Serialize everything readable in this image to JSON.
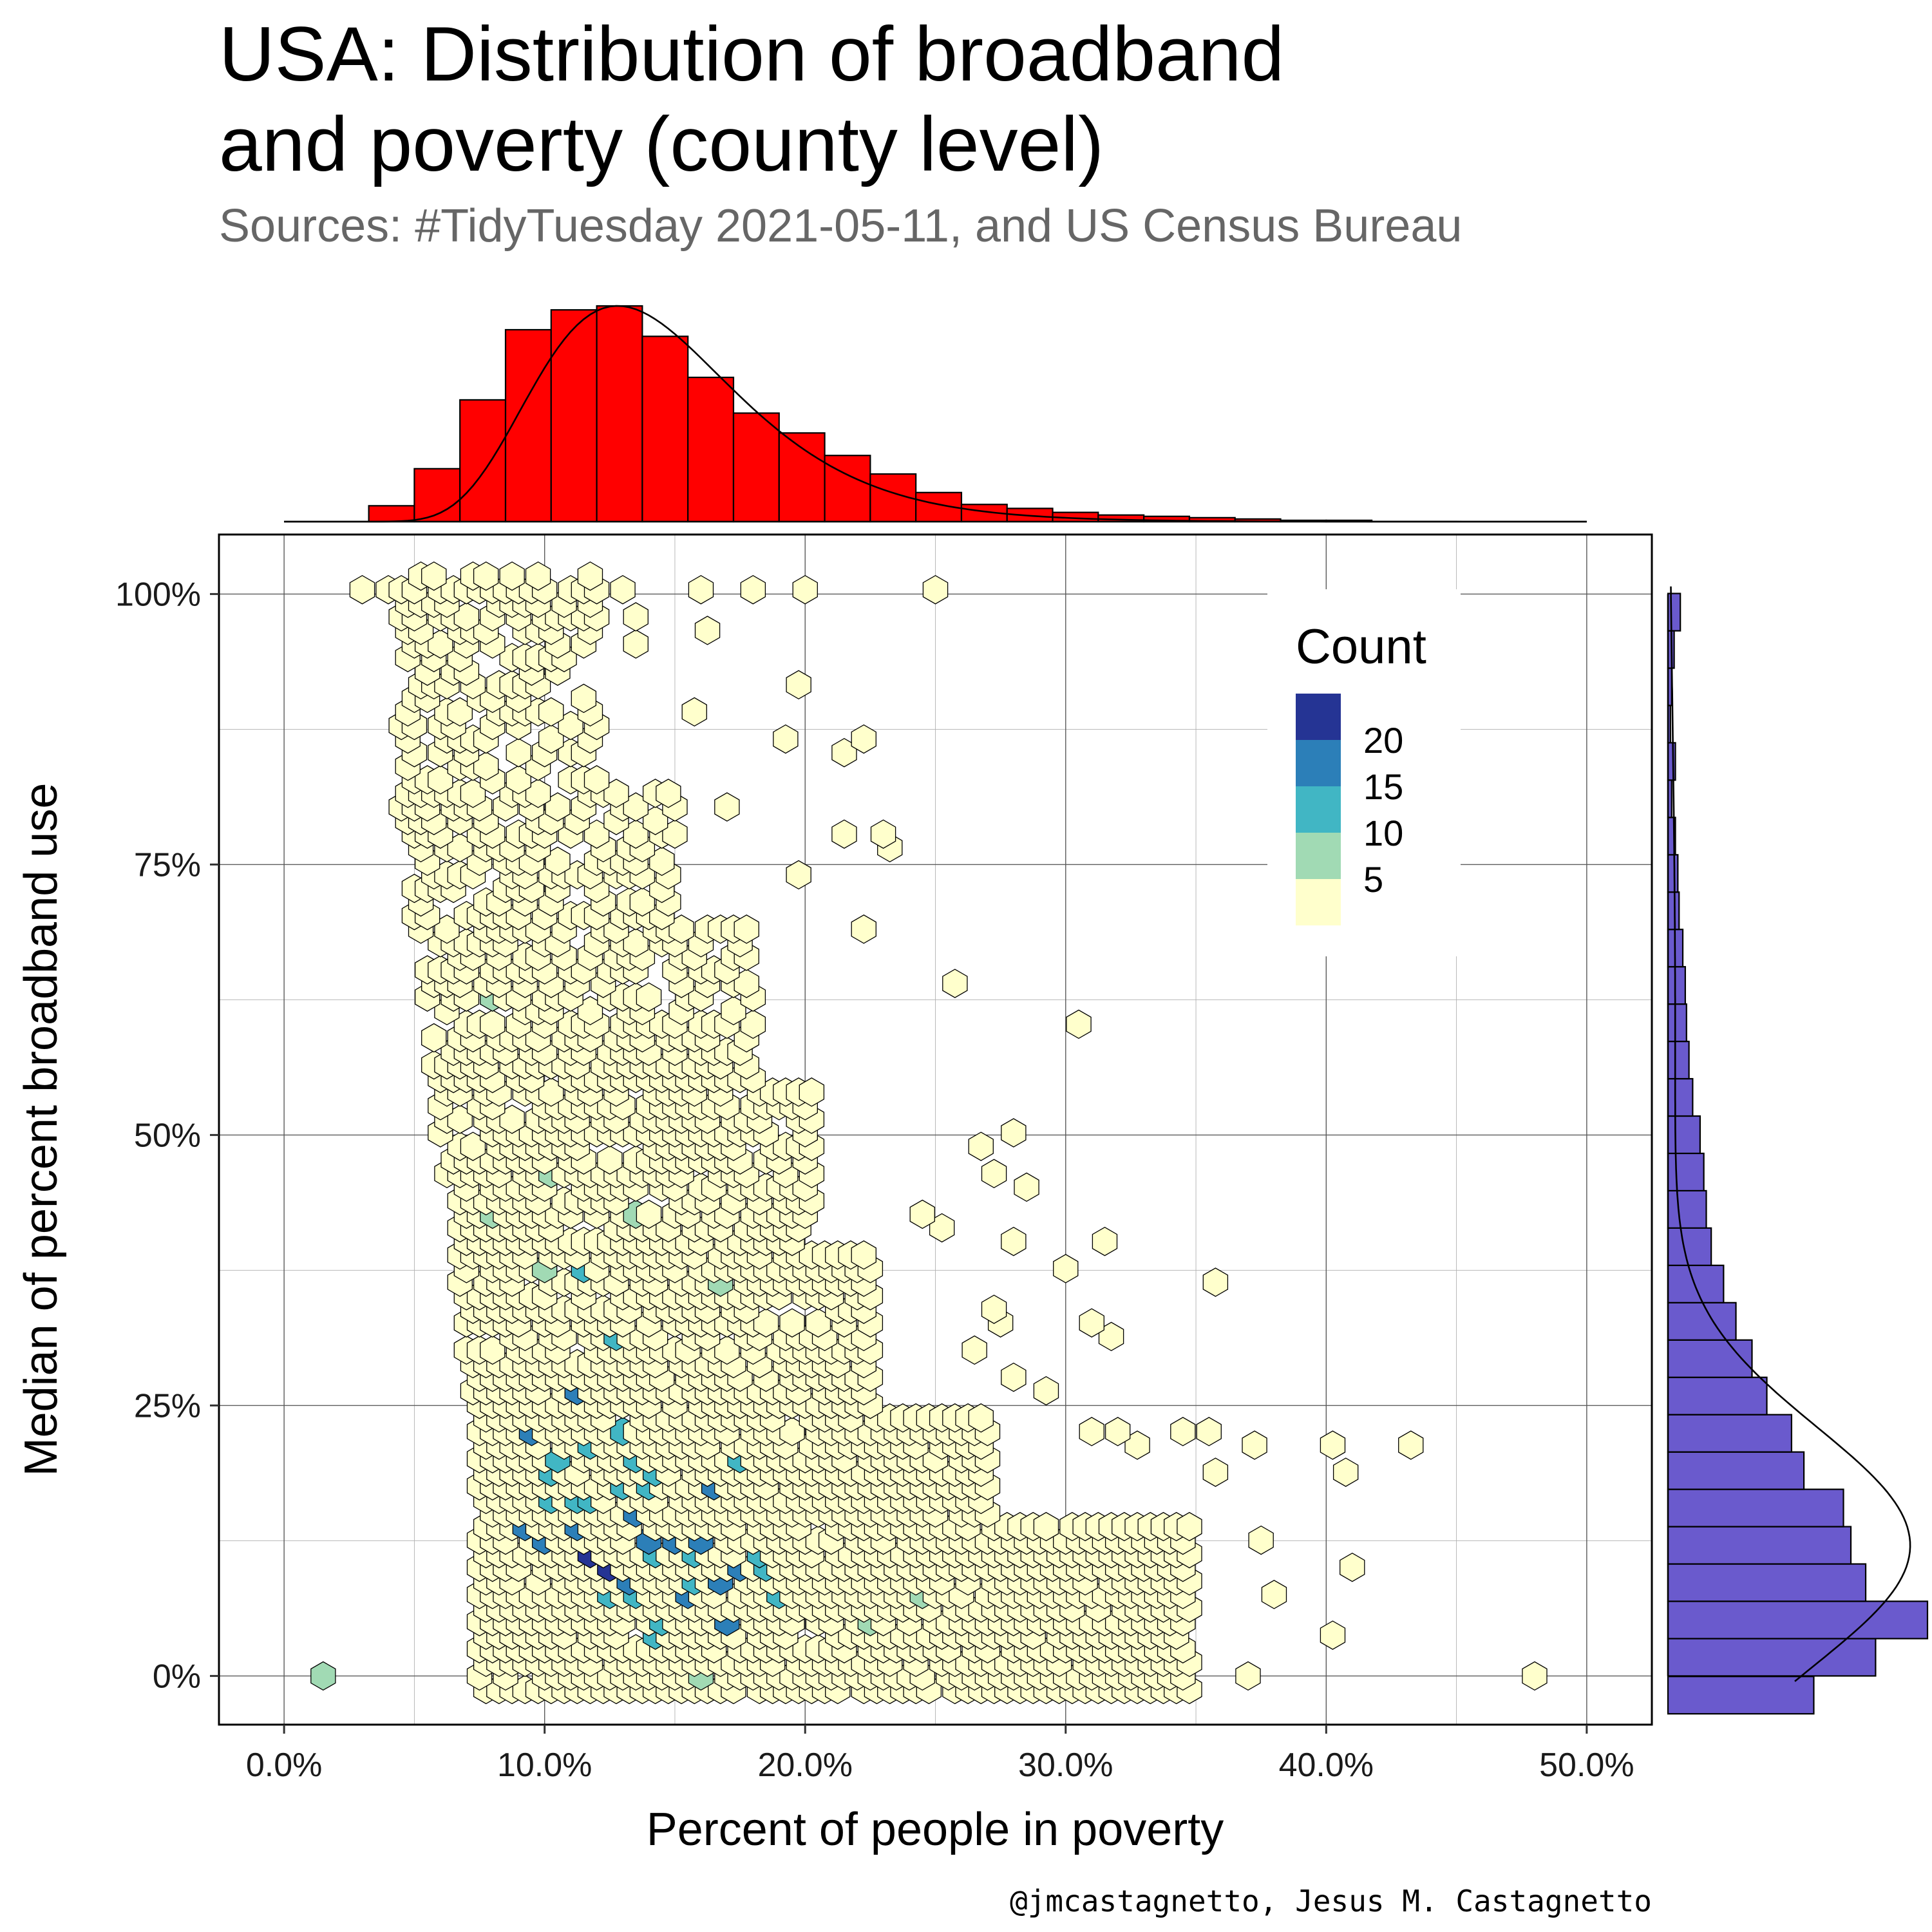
{
  "chart_data": {
    "type": "hexbin",
    "title_lines": [
      "USA: Distribution of broadband",
      "and poverty (county level)"
    ],
    "subtitle": "Sources: #TidyTuesday 2021-05-11, and US Census Bureau",
    "xlabel": "Percent of people in poverty",
    "ylabel": "Median of percent broadband use",
    "caption": "@jmcastagnetto, Jesus M. Castagnetto",
    "xlim": [
      -0.025,
      0.525
    ],
    "ylim": [
      -0.045,
      1.055
    ],
    "x_ticks": [
      {
        "value": 0.0,
        "label": "0.0%"
      },
      {
        "value": 0.1,
        "label": "10.0%"
      },
      {
        "value": 0.2,
        "label": "20.0%"
      },
      {
        "value": 0.3,
        "label": "30.0%"
      },
      {
        "value": 0.4,
        "label": "40.0%"
      },
      {
        "value": 0.5,
        "label": "50.0%"
      }
    ],
    "y_ticks": [
      {
        "value": 0.0,
        "label": "0%"
      },
      {
        "value": 0.25,
        "label": "25%"
      },
      {
        "value": 0.5,
        "label": "50%"
      },
      {
        "value": 0.75,
        "label": "75%"
      },
      {
        "value": 1.0,
        "label": "100%"
      }
    ],
    "grid": true,
    "legend": {
      "title": "Count",
      "position": "top-right",
      "items": [
        {
          "label": "20",
          "color": "#253494"
        },
        {
          "label": "15",
          "color": "#2c7fb8"
        },
        {
          "label": "10",
          "color": "#41b6c4"
        },
        {
          "label": "5",
          "color": "#a1dab4"
        },
        {
          "label": "",
          "color": "#ffffcc"
        }
      ]
    },
    "hex_colors": [
      "#ffffcc",
      "#a1dab4",
      "#41b6c4",
      "#2c7fb8",
      "#253494"
    ],
    "hex_scatter": [
      [
        0.03,
        1.0,
        1
      ],
      [
        0.04,
        1.0,
        1
      ],
      [
        0.05,
        1.0,
        1
      ],
      [
        0.06,
        1.0,
        1
      ],
      [
        0.07,
        1.0,
        1
      ],
      [
        0.08,
        1.0,
        1
      ],
      [
        0.09,
        1.0,
        1
      ],
      [
        0.12,
        1.0,
        1
      ],
      [
        0.13,
        1.0,
        1
      ],
      [
        0.16,
        1.0,
        1
      ],
      [
        0.18,
        1.0,
        1
      ],
      [
        0.2,
        1.0,
        1
      ],
      [
        0.25,
        1.0,
        1
      ],
      [
        0.135,
        0.985,
        1
      ],
      [
        0.16,
        0.97,
        1
      ],
      [
        0.135,
        0.95,
        1
      ],
      [
        0.195,
        0.92,
        1
      ],
      [
        0.155,
        0.885,
        1
      ],
      [
        0.19,
        0.87,
        1
      ],
      [
        0.215,
        0.85,
        1
      ],
      [
        0.22,
        0.87,
        1
      ],
      [
        0.17,
        0.8,
        1
      ],
      [
        0.215,
        0.78,
        1
      ],
      [
        0.23,
        0.78,
        1
      ],
      [
        0.23,
        0.765,
        1
      ],
      [
        0.195,
        0.745,
        1
      ],
      [
        0.22,
        0.69,
        1
      ],
      [
        0.175,
        0.675,
        1
      ],
      [
        0.255,
        0.64,
        1
      ],
      [
        0.305,
        0.605,
        1
      ],
      [
        0.265,
        0.485,
        1
      ],
      [
        0.27,
        0.465,
        1
      ],
      [
        0.28,
        0.5,
        1
      ],
      [
        0.285,
        0.45,
        1
      ],
      [
        0.245,
        0.43,
        1
      ],
      [
        0.25,
        0.415,
        1
      ],
      [
        0.28,
        0.4,
        1
      ],
      [
        0.3,
        0.38,
        1
      ],
      [
        0.315,
        0.4,
        1
      ],
      [
        0.355,
        0.36,
        1
      ],
      [
        0.27,
        0.345,
        1
      ],
      [
        0.275,
        0.33,
        1
      ],
      [
        0.31,
        0.33,
        1
      ],
      [
        0.315,
        0.315,
        1
      ],
      [
        0.265,
        0.295,
        1
      ],
      [
        0.28,
        0.28,
        1
      ],
      [
        0.295,
        0.26,
        1
      ],
      [
        0.31,
        0.225,
        1
      ],
      [
        0.32,
        0.225,
        1
      ],
      [
        0.325,
        0.21,
        1
      ],
      [
        0.345,
        0.225,
        1
      ],
      [
        0.355,
        0.225,
        1
      ],
      [
        0.355,
        0.19,
        1
      ],
      [
        0.37,
        0.21,
        1
      ],
      [
        0.4,
        0.21,
        1
      ],
      [
        0.405,
        0.19,
        1
      ],
      [
        0.43,
        0.21,
        1
      ],
      [
        0.32,
        0.14,
        1
      ],
      [
        0.325,
        0.125,
        1
      ],
      [
        0.335,
        0.125,
        1
      ],
      [
        0.375,
        0.125,
        1
      ],
      [
        0.41,
        0.105,
        1
      ],
      [
        0.38,
        0.07,
        1
      ],
      [
        0.4,
        0.04,
        1
      ],
      [
        0.48,
        0.0,
        1
      ],
      [
        0.37,
        0.0,
        1
      ],
      [
        0.33,
        0.0,
        1
      ],
      [
        0.28,
        0.0,
        1
      ],
      [
        0.245,
        0.07,
        2
      ],
      [
        0.225,
        0.05,
        2
      ],
      [
        0.08,
        0.63,
        2
      ],
      [
        0.1,
        0.46,
        2
      ],
      [
        0.135,
        0.43,
        2
      ],
      [
        0.08,
        0.43,
        2
      ],
      [
        0.1,
        0.38,
        2
      ],
      [
        0.165,
        0.365,
        2
      ],
      [
        0.0135,
        0.0,
        2
      ],
      [
        0.16,
        0.0,
        2
      ],
      [
        0.12,
        0.11,
        5
      ],
      [
        0.115,
        0.38,
        3
      ],
      [
        0.11,
        0.26,
        4
      ],
      [
        0.095,
        0.23,
        4
      ],
      [
        0.09,
        0.135,
        4
      ],
      [
        0.1,
        0.125,
        4
      ],
      [
        0.11,
        0.135,
        4
      ],
      [
        0.125,
        0.105,
        5
      ],
      [
        0.13,
        0.09,
        4
      ],
      [
        0.14,
        0.125,
        4
      ],
      [
        0.15,
        0.125,
        4
      ],
      [
        0.16,
        0.125,
        4
      ],
      [
        0.165,
        0.175,
        4
      ],
      [
        0.175,
        0.095,
        4
      ],
      [
        0.17,
        0.055,
        4
      ],
      [
        0.165,
        0.085,
        4
      ],
      [
        0.155,
        0.07,
        4
      ],
      [
        0.14,
        0.035,
        3
      ],
      [
        0.135,
        0.155,
        4
      ],
      [
        0.13,
        0.225,
        3
      ],
      [
        0.13,
        0.18,
        3
      ],
      [
        0.12,
        0.165,
        3
      ],
      [
        0.11,
        0.165,
        3
      ],
      [
        0.105,
        0.2,
        3
      ],
      [
        0.115,
        0.215,
        3
      ],
      [
        0.1,
        0.185,
        3
      ],
      [
        0.1,
        0.16,
        3
      ],
      [
        0.125,
        0.31,
        3
      ],
      [
        0.135,
        0.195,
        3
      ],
      [
        0.145,
        0.19,
        3
      ],
      [
        0.14,
        0.175,
        3
      ],
      [
        0.145,
        0.11,
        3
      ],
      [
        0.155,
        0.11,
        3
      ],
      [
        0.155,
        0.09,
        3
      ],
      [
        0.125,
        0.07,
        3
      ],
      [
        0.135,
        0.07,
        3
      ],
      [
        0.145,
        0.05,
        3
      ],
      [
        0.19,
        0.07,
        3
      ],
      [
        0.175,
        0.195,
        3
      ],
      [
        0.18,
        0.11,
        3
      ],
      [
        0.185,
        0.095,
        3
      ]
    ],
    "hex_fill_region_description": "",
    "top_histogram": {
      "fill": "#ff0000",
      "bin_width": 0.0175,
      "bin_starts": [
        0.0325,
        0.05,
        0.0675,
        0.085,
        0.1025,
        0.12,
        0.1375,
        0.155,
        0.1725,
        0.19,
        0.2075,
        0.225,
        0.2425,
        0.26,
        0.2775,
        0.295,
        0.3125,
        0.33,
        0.3475,
        0.365,
        0.3825,
        0.4
      ],
      "counts": [
        12,
        40,
        92,
        145,
        160,
        163,
        140,
        109,
        82,
        67,
        50,
        36,
        22,
        13,
        10,
        7,
        5,
        4,
        3,
        2,
        1,
        1
      ]
    },
    "right_histogram": {
      "fill": "#6a5acd",
      "bin_width": 0.0345,
      "bin_starts": [
        -0.035,
        0.0,
        0.0345,
        0.069,
        0.1035,
        0.138,
        0.1725,
        0.207,
        0.2415,
        0.276,
        0.3105,
        0.345,
        0.3795,
        0.414,
        0.4485,
        0.483,
        0.5175,
        0.552,
        0.5865,
        0.621,
        0.6555,
        0.69,
        0.7245,
        0.759,
        0.7935,
        0.828,
        0.8625,
        0.897,
        0.9315,
        0.966
      ],
      "counts": [
        118,
        168,
        210,
        160,
        148,
        142,
        110,
        100,
        80,
        68,
        55,
        45,
        35,
        31,
        29,
        26,
        20,
        17,
        15,
        14,
        12,
        9,
        8,
        6,
        3,
        6,
        2,
        3,
        5,
        10
      ]
    }
  }
}
